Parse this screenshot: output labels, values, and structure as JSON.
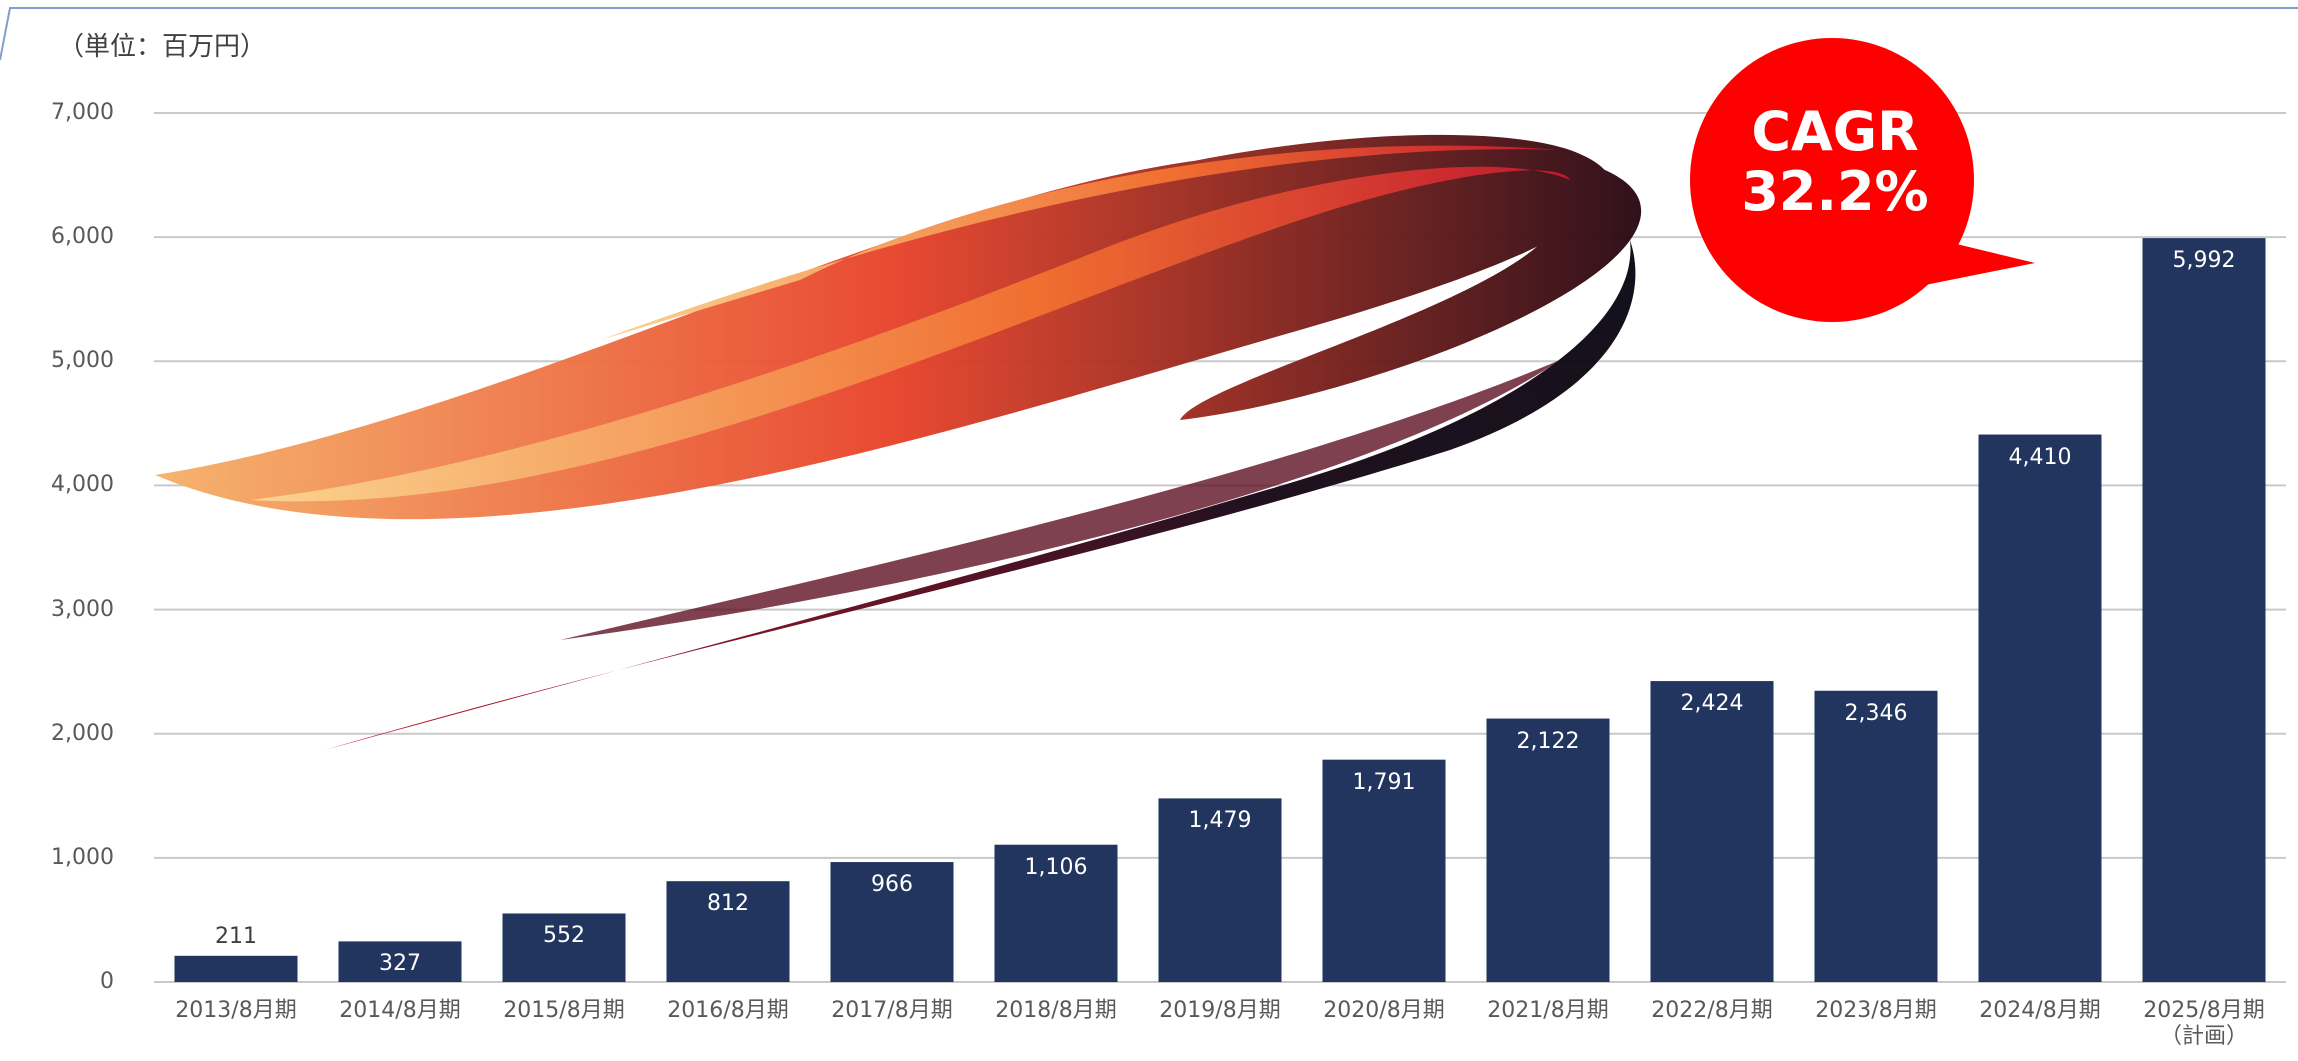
{
  "chart_data": {
    "type": "bar",
    "unit_label": "（単位：百万円）",
    "annotation": "CAGR\n32.2%",
    "categories": [
      "2013/8月期",
      "2014/8月期",
      "2015/8月期",
      "2016/8月期",
      "2017/8月期",
      "2018/8月期",
      "2019/8月期",
      "2020/8月期",
      "2021/8月期",
      "2022/8月期",
      "2023/8月期",
      "2024/8月期",
      "2025/8月期\n（計画）"
    ],
    "values": [
      211,
      327,
      552,
      812,
      966,
      1106,
      1479,
      1791,
      2122,
      2424,
      2346,
      4410,
      5992
    ],
    "value_labels": [
      "211",
      "327",
      "552",
      "812",
      "966",
      "1,106",
      "1,479",
      "1,791",
      "2,122",
      "2,424",
      "2,346",
      "4,410",
      "5,992"
    ],
    "color": "#21355e",
    "ylim": [
      0,
      7000
    ],
    "yticks": [
      0,
      {
        "value": 1000,
        "label": "1,000"
      },
      {
        "value": 2000,
        "label": "2,000"
      },
      {
        "value": 3000,
        "label": "3,000"
      },
      {
        "value": 4000,
        "label": "4,000"
      },
      {
        "value": 5000,
        "label": "5,000"
      },
      {
        "value": 6000,
        "label": "6,000"
      },
      {
        "value": 7000,
        "label": "7,000"
      }
    ],
    "grid": true
  }
}
